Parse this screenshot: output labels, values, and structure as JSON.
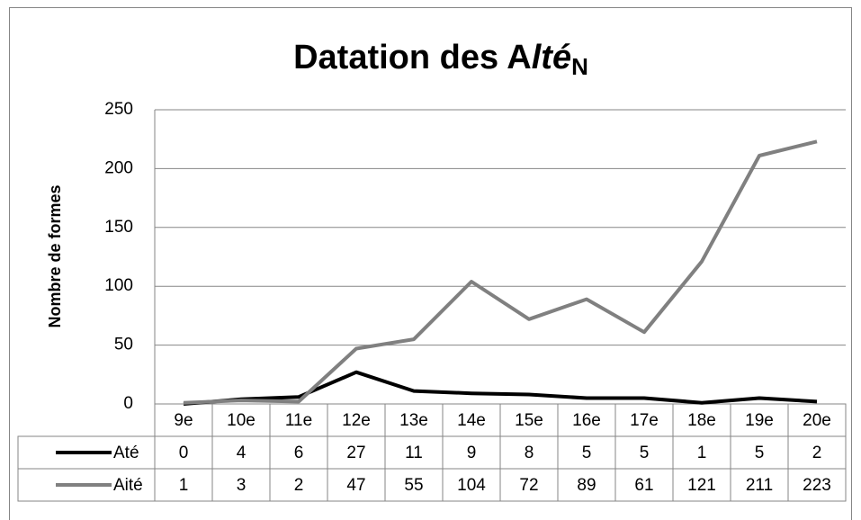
{
  "chart_data": {
    "type": "line",
    "title": [
      "Datation des A",
      "lté",
      "N"
    ],
    "y_label": "Nombre de formes",
    "categories": [
      "9e",
      "10e",
      "11e",
      "12e",
      "13e",
      "14e",
      "15e",
      "16e",
      "17e",
      "18e",
      "19e",
      "20e"
    ],
    "series": [
      {
        "name": "Até",
        "color": "#000000",
        "values": [
          0,
          4,
          6,
          27,
          11,
          9,
          8,
          5,
          5,
          1,
          5,
          2
        ]
      },
      {
        "name": "Aité",
        "color": "#808080",
        "values": [
          1,
          3,
          2,
          47,
          55,
          104,
          72,
          89,
          61,
          121,
          211,
          223
        ]
      }
    ],
    "ylim": [
      0,
      250
    ],
    "yticks": [
      0,
      50,
      100,
      150,
      200,
      250
    ],
    "grid": true,
    "data_table": true
  }
}
